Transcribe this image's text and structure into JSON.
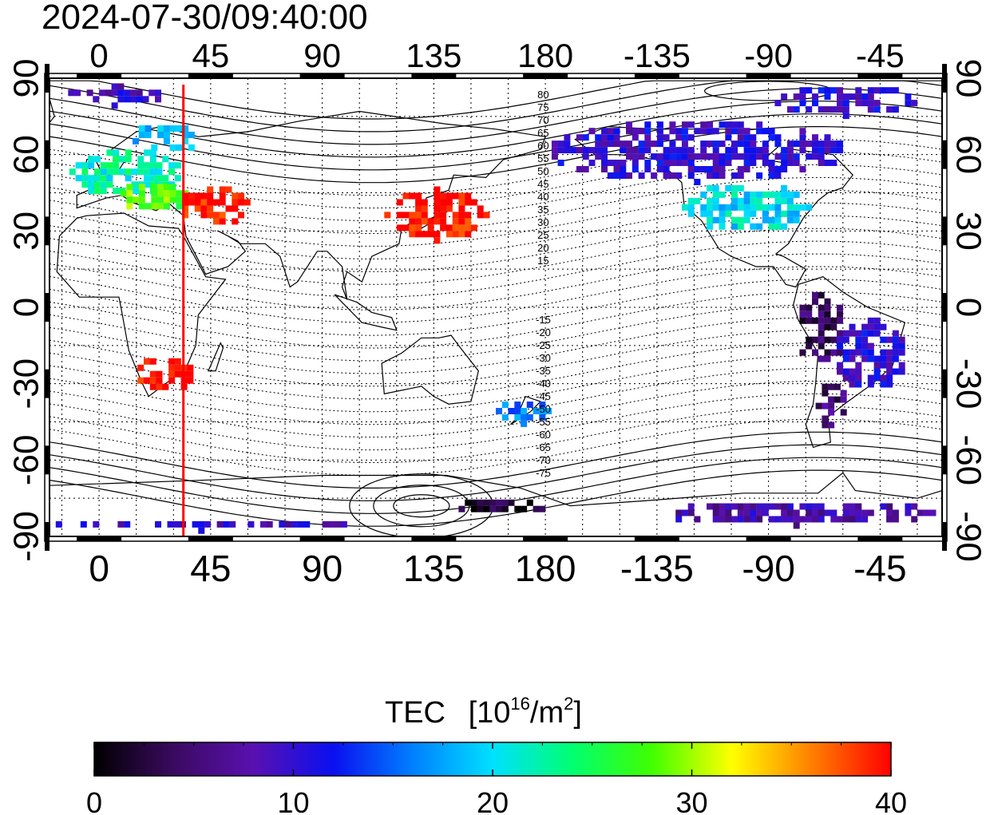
{
  "timestamp": "2024-07-30/09:40:00",
  "map": {
    "lon_ticks": [
      "0",
      "45",
      "90",
      "135",
      "180",
      "-135",
      "-90",
      "-45"
    ],
    "lat_ticks": [
      "90",
      "60",
      "30",
      "0",
      "-30",
      "-60",
      "-90"
    ],
    "lon_tick_values": [
      0,
      45,
      90,
      135,
      180,
      225,
      270,
      315
    ],
    "lat_tick_values": [
      90,
      60,
      30,
      0,
      -30,
      -60,
      -90
    ],
    "lon_range": [
      -20,
      340
    ],
    "lat_range": [
      -90,
      90
    ],
    "terminator_lon": 34,
    "north_contour_labels": [
      "80",
      "75",
      "70",
      "65",
      "60",
      "55",
      "50",
      "45",
      "40",
      "35",
      "30",
      "25",
      "20",
      "15"
    ],
    "south_contour_labels": [
      "-15",
      "-20",
      "-25",
      "-30",
      "-35",
      "-40",
      "-45",
      "-50",
      "-55",
      "-60",
      "-65",
      "-70",
      "-75"
    ],
    "contour_label_lon": 180
  },
  "colorbar": {
    "title": "TEC",
    "unit_base": "10",
    "unit_exp": "16",
    "unit_mid": "/m",
    "unit_exp2": "2",
    "unit_close": "]",
    "unit_open": "[",
    "ticks": [
      "0",
      "10",
      "20",
      "30",
      "40"
    ],
    "tick_values": [
      0,
      10,
      20,
      30,
      40
    ],
    "range": [
      0,
      40
    ],
    "colors": [
      "#000000",
      "#3a0a60",
      "#5a10b0",
      "#0a10f0",
      "#0080ff",
      "#00e0ff",
      "#00ff70",
      "#40ff00",
      "#ffff00",
      "#ff8000",
      "#ff0000"
    ]
  },
  "tec_regions": [
    {
      "lat": 52,
      "lon": 10,
      "tec": 22,
      "rlat": 10,
      "rlon": 22
    },
    {
      "lat": 42,
      "lon": 20,
      "tec": 28,
      "rlat": 6,
      "rlon": 14
    },
    {
      "lat": 65,
      "lon": 25,
      "tec": 18,
      "rlat": 6,
      "rlon": 14
    },
    {
      "lat": 82,
      "lon": 5,
      "tec": 9,
      "rlat": 4,
      "rlon": 20
    },
    {
      "lat": 38,
      "lon": 45,
      "tec": 40,
      "rlat": 8,
      "rlon": 14
    },
    {
      "lat": 35,
      "lon": 135,
      "tec": 40,
      "rlat": 10,
      "rlon": 20
    },
    {
      "lat": -28,
      "lon": 25,
      "tec": 40,
      "rlat": 7,
      "rlon": 12
    },
    {
      "lat": 60,
      "lon": 240,
      "tec": 10,
      "rlat": 12,
      "rlon": 60
    },
    {
      "lat": 38,
      "lon": 260,
      "tec": 20,
      "rlat": 10,
      "rlon": 25
    },
    {
      "lat": 80,
      "lon": 300,
      "tec": 10,
      "rlat": 6,
      "rlon": 30
    },
    {
      "lat": -10,
      "lon": 290,
      "tec": 4,
      "rlat": 14,
      "rlon": 10
    },
    {
      "lat": -20,
      "lon": 310,
      "tec": 10,
      "rlat": 14,
      "rlon": 15
    },
    {
      "lat": -40,
      "lon": 295,
      "tec": 5,
      "rlat": 10,
      "rlon": 6
    },
    {
      "lat": -82,
      "lon": 280,
      "tec": 8,
      "rlat": 5,
      "rlon": 55
    },
    {
      "lat": -87,
      "lon": 40,
      "tec": 9,
      "rlat": 2,
      "rlon": 60
    },
    {
      "lat": -42,
      "lon": 170,
      "tec": 16,
      "rlat": 5,
      "rlon": 10
    },
    {
      "lat": -80,
      "lon": 160,
      "tec": 2,
      "rlat": 3,
      "rlon": 20
    }
  ]
}
